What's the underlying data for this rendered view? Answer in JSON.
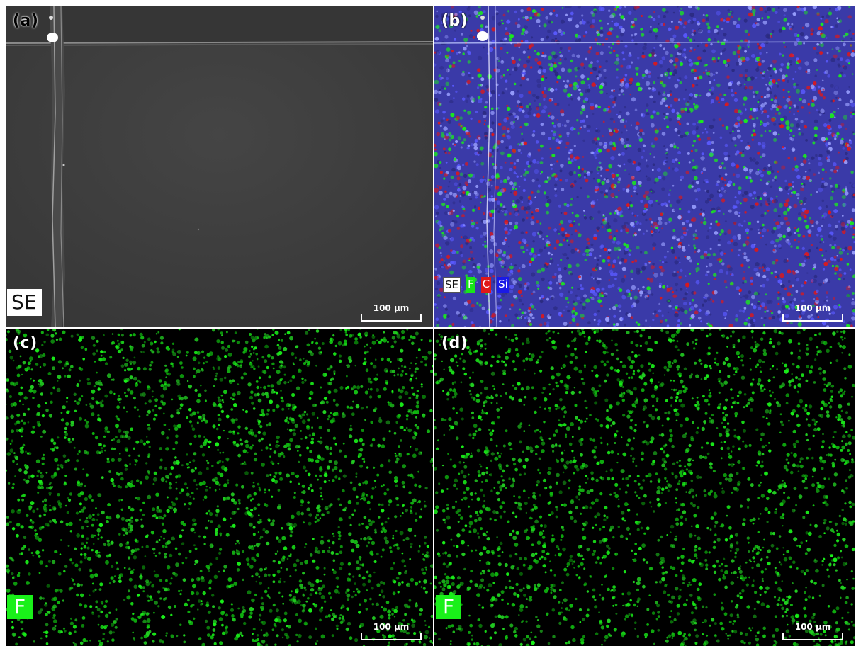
{
  "panels": [
    {
      "id": "a",
      "label": "(a)",
      "badge": "SE",
      "scale": "100 µm"
    },
    {
      "id": "b",
      "label": "(b)",
      "legend": [
        "SE",
        "F",
        "C",
        "Si"
      ],
      "scale": "100 µm"
    },
    {
      "id": "c",
      "label": "(c)",
      "badge": "F",
      "scale": "100 µm"
    },
    {
      "id": "d",
      "label": "(d)",
      "badge": "F",
      "scale": "100 µm"
    }
  ],
  "colors": {
    "fluorine": "#19f019",
    "carbon": "#e01818",
    "silicon": "#1a1ae6",
    "se_background": "#3c3c3c"
  }
}
